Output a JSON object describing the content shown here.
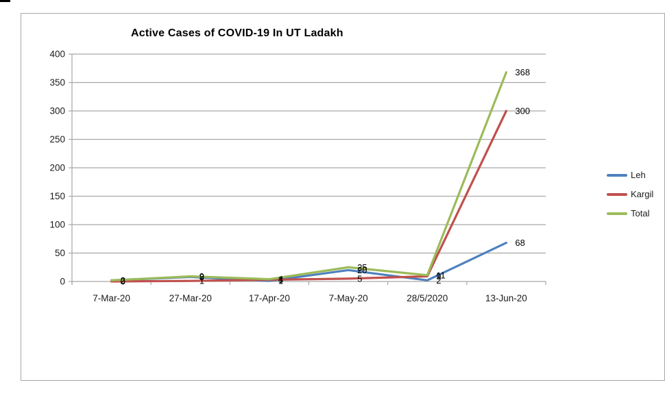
{
  "chart_data": {
    "type": "line",
    "title": "Active Cases of COVID-19 In UT Ladakh",
    "categories": [
      "7-Mar-20",
      "27-Mar-20",
      "17-Apr-20",
      "7-May-20",
      "28/5/2020",
      "13-Jun-20"
    ],
    "series": [
      {
        "name": "Leh",
        "color": "#4F81BD",
        "values": [
          2,
          8,
          1,
          20,
          2,
          68
        ]
      },
      {
        "name": "Kargil",
        "color": "#C0504D",
        "values": [
          0,
          1,
          3,
          5,
          9,
          300
        ]
      },
      {
        "name": "Total",
        "color": "#9BBB59",
        "values": [
          2,
          9,
          4,
          25,
          11,
          368
        ]
      }
    ],
    "xlabel": "",
    "ylabel": "",
    "ylim": [
      0,
      400
    ],
    "ytick_step": 50,
    "grid": true,
    "legend_position": "right",
    "data_label_position": "right",
    "end_labels": [
      68,
      300,
      368
    ]
  },
  "colors": {
    "axis": "#a6a6a6",
    "grid": "#a6a6a6",
    "text": "#1a1a1a",
    "data_label": "#000000",
    "chart_border": "#a6a6a6"
  }
}
